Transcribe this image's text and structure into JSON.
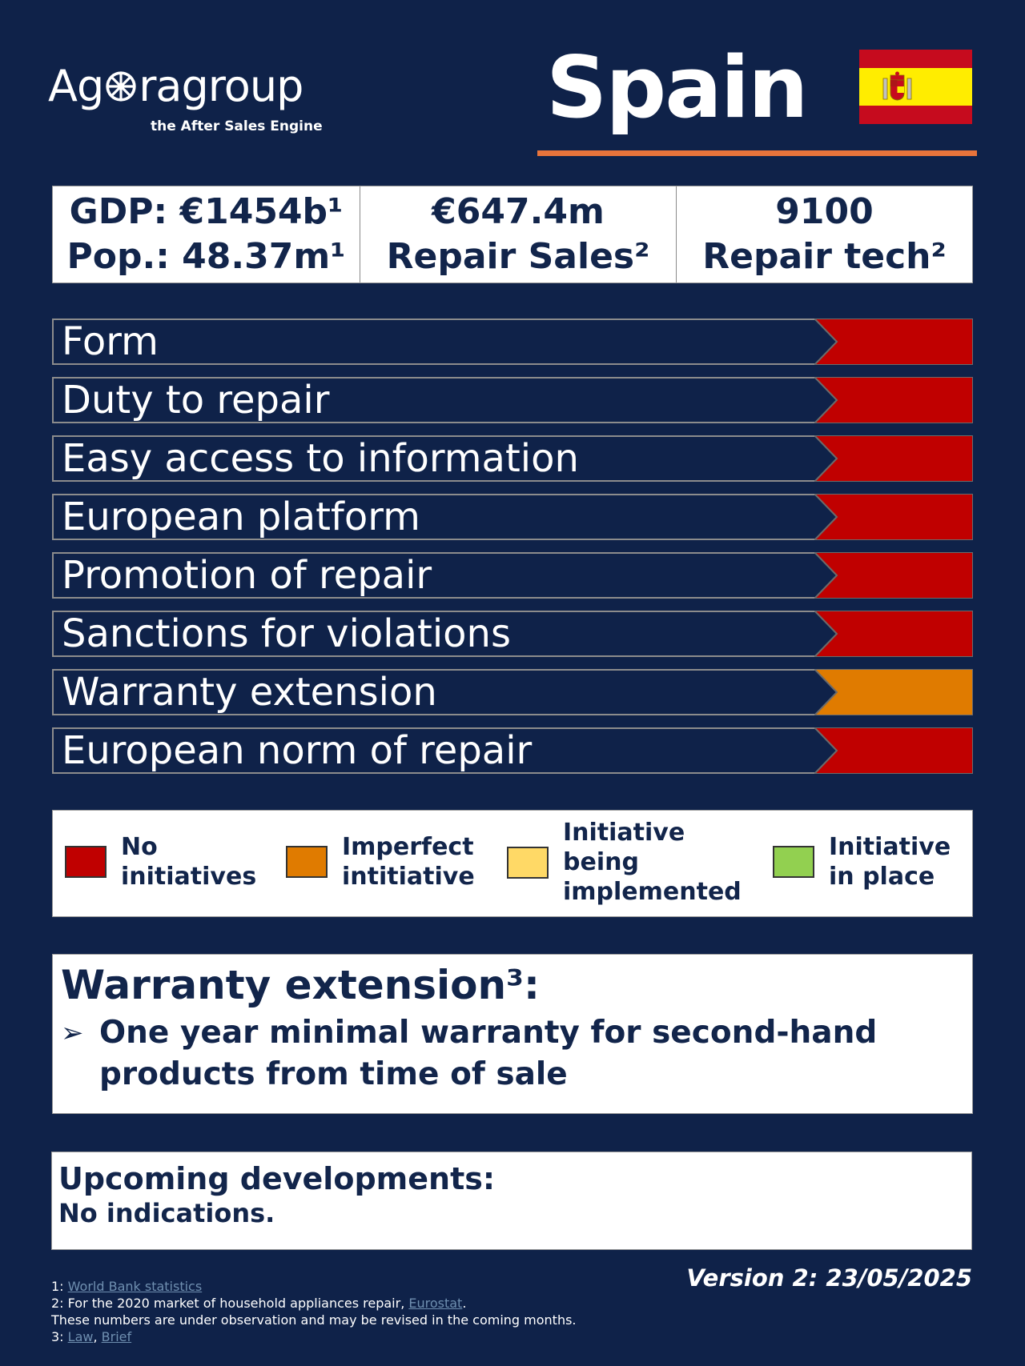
{
  "logo": {
    "name_before": "Ag",
    "name_after": "ragroup",
    "tagline": "the After Sales Engine"
  },
  "country": "Spain",
  "colors": {
    "background": "#0f2249",
    "accent_rule": "#e8743b",
    "no_initiatives": "#c00000",
    "imperfect": "#e07b00",
    "being_implemented": "#ffd966",
    "in_place": "#92d050"
  },
  "stats": [
    {
      "line1": "GDP: €1454b¹",
      "line2": "Pop.: 48.37m¹"
    },
    {
      "line1": "€647.4m",
      "line2": "Repair Sales²"
    },
    {
      "line1": "9100",
      "line2": "Repair tech²"
    }
  ],
  "criteria": [
    {
      "label": "Form",
      "status": "no_initiatives"
    },
    {
      "label": "Duty to repair",
      "status": "no_initiatives"
    },
    {
      "label": "Easy access to information",
      "status": "no_initiatives"
    },
    {
      "label": "European platform",
      "status": "no_initiatives"
    },
    {
      "label": "Promotion of repair",
      "status": "no_initiatives"
    },
    {
      "label": "Sanctions for violations",
      "status": "no_initiatives"
    },
    {
      "label": "Warranty extension",
      "status": "imperfect"
    },
    {
      "label": "European norm of repair",
      "status": "no_initiatives"
    }
  ],
  "legend": [
    {
      "key": "no_initiatives",
      "lines": [
        "No",
        "initiatives"
      ]
    },
    {
      "key": "imperfect",
      "lines": [
        "Imperfect",
        "intitiative"
      ]
    },
    {
      "key": "being_implemented",
      "lines": [
        "Initiative",
        "being",
        "implemented"
      ]
    },
    {
      "key": "in_place",
      "lines": [
        "Initiative",
        "in place"
      ]
    }
  ],
  "warranty": {
    "title": "Warranty extension³:",
    "bullet_line1": "One year minimal warranty for second-hand",
    "bullet_line2": "products from time of sale"
  },
  "upcoming": {
    "title": "Upcoming developments:",
    "text": "No indications."
  },
  "version": "Version 2: 23/05/2025",
  "footnotes": {
    "n1_prefix": "1: ",
    "n1_link": "World Bank statistics",
    "n2_prefix": "2: For the 2020 market of household appliances repair, ",
    "n2_link": "Eurostat",
    "n2_suffix": ".",
    "n2_note": "These numbers are under observation and may be revised in the coming months.",
    "n3_prefix": "3: ",
    "n3_link1": "Law",
    "n3_sep": ", ",
    "n3_link2": "Brief"
  }
}
